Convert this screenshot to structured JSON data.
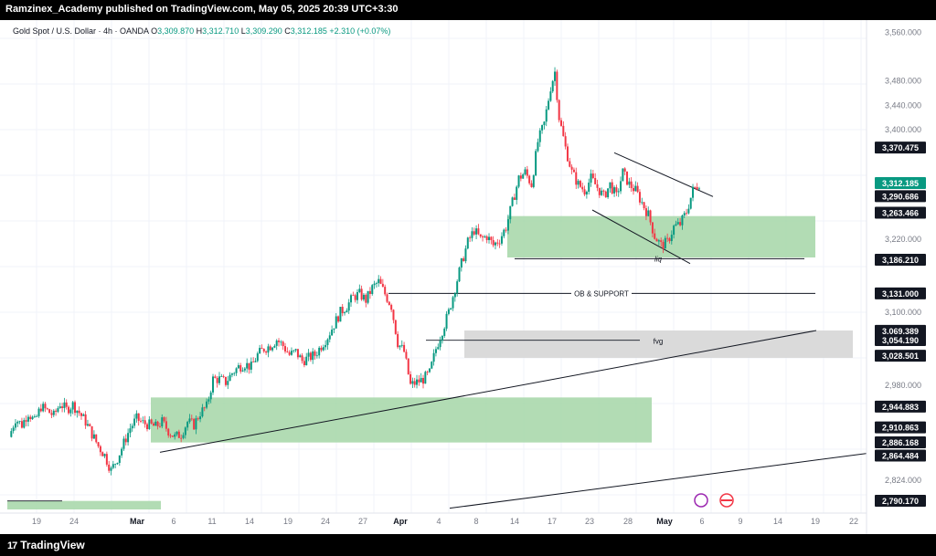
{
  "header": {
    "publisher": "Ramzinex_Academy published on TradingView.com, May 05, 2025 20:39 UTC+3:30"
  },
  "legend": {
    "symbol": "Gold Spot / U.S. Dollar · 4h · OANDA",
    "open_label": "O",
    "open": "3,309.870",
    "high_label": "H",
    "high": "3,312.710",
    "low_label": "L",
    "low": "3,309.290",
    "close_label": "C",
    "close": "3,312.185",
    "change": "+2.310 (+0.07%)"
  },
  "footer": {
    "brand": "TradingView",
    "logo_glyph": "17"
  },
  "colors": {
    "up": "#089981",
    "down": "#f23645",
    "zone_green": "#a5d6a7",
    "zone_grey": "#d6d6d6",
    "last_price": "#089981"
  },
  "chart_data": {
    "type": "candlestick",
    "ylim": [
      2770,
      3580
    ],
    "y_ticks": [
      "3,560.000",
      "3,480.000",
      "3,440.000",
      "3,400.000",
      "3,220.000",
      "3,100.000",
      "2,980.000",
      "2,824.000"
    ],
    "x_ticks": [
      "19",
      "24",
      "Mar",
      "6",
      "11",
      "14",
      "19",
      "24",
      "27",
      "Apr",
      "4",
      "8",
      "14",
      "17",
      "23",
      "28",
      "May",
      "6",
      "9",
      "14",
      "19",
      "22"
    ],
    "price_labels": [
      {
        "text": "3,370.475",
        "style": "black"
      },
      {
        "text": "3,312.185",
        "style": "green"
      },
      {
        "text": "3,290.686",
        "style": "black"
      },
      {
        "text": "3,263.466",
        "style": "black"
      },
      {
        "text": "3,186.210",
        "style": "black"
      },
      {
        "text": "3,131.000",
        "style": "black"
      },
      {
        "text": "3,069.389",
        "style": "black"
      },
      {
        "text": "3,054.190",
        "style": "black"
      },
      {
        "text": "3,028.501",
        "style": "black"
      },
      {
        "text": "2,944.883",
        "style": "black"
      },
      {
        "text": "2,910.863",
        "style": "black"
      },
      {
        "text": "2,886.168",
        "style": "black"
      },
      {
        "text": "2,864.484",
        "style": "black"
      },
      {
        "text": "2,790.170",
        "style": "black"
      }
    ],
    "annotations": [
      "liq",
      "OB & SUPPORT",
      "fvg"
    ],
    "path": [
      [
        0,
        2895
      ],
      [
        6,
        2925
      ],
      [
        12,
        2915
      ],
      [
        18,
        2935
      ],
      [
        24,
        2920
      ],
      [
        30,
        2945
      ],
      [
        36,
        2938
      ],
      [
        42,
        2930
      ],
      [
        48,
        2950
      ],
      [
        54,
        2940
      ],
      [
        60,
        2948
      ],
      [
        66,
        2935
      ],
      [
        72,
        2920
      ],
      [
        78,
        2900
      ],
      [
        84,
        2880
      ],
      [
        90,
        2865
      ],
      [
        96,
        2840
      ],
      [
        102,
        2860
      ],
      [
        108,
        2885
      ],
      [
        114,
        2910
      ],
      [
        120,
        2925
      ],
      [
        126,
        2918
      ],
      [
        132,
        2915
      ],
      [
        138,
        2912
      ],
      [
        144,
        2920
      ],
      [
        150,
        2905
      ],
      [
        156,
        2895
      ],
      [
        162,
        2900
      ],
      [
        168,
        2920
      ],
      [
        174,
        2915
      ],
      [
        180,
        2935
      ],
      [
        186,
        2945
      ],
      [
        192,
        2990
      ],
      [
        198,
        2990
      ],
      [
        204,
        2985
      ],
      [
        210,
        3000
      ],
      [
        216,
        3010
      ],
      [
        222,
        3015
      ],
      [
        228,
        3010
      ],
      [
        234,
        3030
      ],
      [
        240,
        3040
      ],
      [
        246,
        3045
      ],
      [
        252,
        3055
      ],
      [
        258,
        3045
      ],
      [
        264,
        3030
      ],
      [
        270,
        3035
      ],
      [
        276,
        3020
      ],
      [
        282,
        3025
      ],
      [
        288,
        3030
      ],
      [
        294,
        3045
      ],
      [
        300,
        3060
      ],
      [
        306,
        3080
      ],
      [
        312,
        3100
      ],
      [
        318,
        3110
      ],
      [
        324,
        3125
      ],
      [
        330,
        3130
      ],
      [
        336,
        3120
      ],
      [
        342,
        3140
      ],
      [
        348,
        3150
      ],
      [
        354,
        3130
      ],
      [
        360,
        3110
      ],
      [
        366,
        3050
      ],
      [
        372,
        3035
      ],
      [
        378,
        2980
      ],
      [
        384,
        2985
      ],
      [
        390,
        2990
      ],
      [
        396,
        3000
      ],
      [
        402,
        3040
      ],
      [
        408,
        3070
      ],
      [
        414,
        3100
      ],
      [
        420,
        3140
      ],
      [
        426,
        3180
      ],
      [
        432,
        3215
      ],
      [
        438,
        3235
      ],
      [
        444,
        3220
      ],
      [
        450,
        3225
      ],
      [
        456,
        3210
      ],
      [
        462,
        3220
      ],
      [
        468,
        3240
      ],
      [
        474,
        3280
      ],
      [
        480,
        3320
      ],
      [
        486,
        3330
      ],
      [
        492,
        3310
      ],
      [
        498,
        3380
      ],
      [
        504,
        3410
      ],
      [
        510,
        3470
      ],
      [
        514,
        3495
      ],
      [
        518,
        3420
      ],
      [
        524,
        3370
      ],
      [
        530,
        3330
      ],
      [
        536,
        3310
      ],
      [
        542,
        3300
      ],
      [
        548,
        3320
      ],
      [
        554,
        3305
      ],
      [
        560,
        3290
      ],
      [
        566,
        3310
      ],
      [
        572,
        3290
      ],
      [
        578,
        3330
      ],
      [
        584,
        3310
      ],
      [
        590,
        3300
      ],
      [
        596,
        3280
      ],
      [
        602,
        3260
      ],
      [
        608,
        3225
      ],
      [
        614,
        3210
      ],
      [
        620,
        3215
      ],
      [
        626,
        3240
      ],
      [
        632,
        3245
      ],
      [
        638,
        3265
      ],
      [
        644,
        3300
      ],
      [
        650,
        3312
      ]
    ],
    "x_domain": [
      0,
      650
    ]
  }
}
